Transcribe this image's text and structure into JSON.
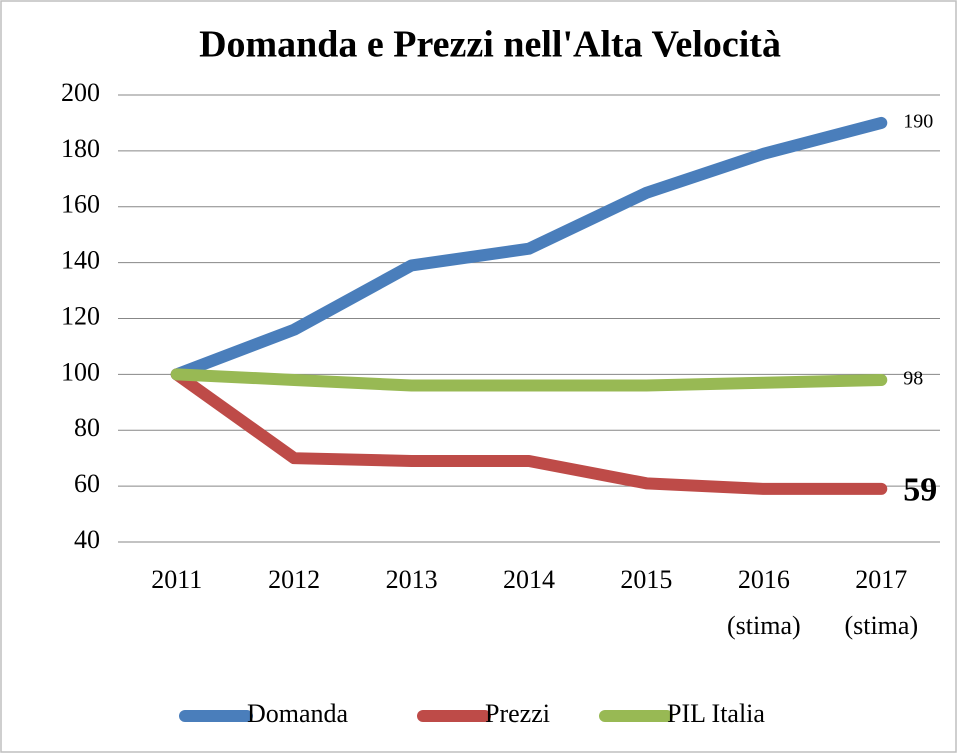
{
  "chart_data": {
    "type": "line",
    "title": "Domanda e Prezzi nell'Alta Velocità",
    "categories": [
      "2011",
      "2012",
      "2013",
      "2014",
      "2015",
      "2016\n(stima)",
      "2017\n(stima)"
    ],
    "series": [
      {
        "name": "Domanda",
        "color": "#4a7ebb",
        "values": [
          100,
          116,
          139,
          145,
          165,
          179,
          190
        ]
      },
      {
        "name": "Prezzi",
        "color": "#be4b48",
        "values": [
          100,
          70,
          69,
          69,
          61,
          59,
          59
        ]
      },
      {
        "name": "PIL Italia",
        "color": "#98b954",
        "values": [
          100,
          98,
          96,
          96,
          96,
          97,
          98
        ]
      }
    ],
    "ylim": [
      40,
      200
    ],
    "yticks": [
      40,
      60,
      80,
      100,
      120,
      140,
      160,
      180,
      200
    ],
    "grid": true,
    "legend": "bottom"
  }
}
